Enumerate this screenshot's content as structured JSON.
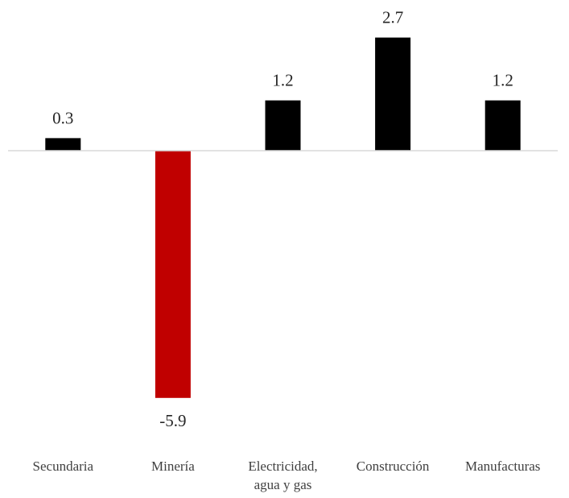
{
  "chart_data": {
    "type": "bar",
    "title": "",
    "xlabel": "",
    "ylabel": "",
    "categories": [
      [
        "Secundaria"
      ],
      [
        "Minería"
      ],
      [
        "Electricidad,",
        "agua y gas"
      ],
      [
        "Construcción"
      ],
      [
        "Manufacturas"
      ]
    ],
    "values": [
      0.3,
      -5.9,
      1.2,
      2.7,
      1.2
    ],
    "data_labels": [
      "0.3",
      "-5.9",
      "1.2",
      "2.7",
      "1.2"
    ],
    "ylim": [
      -6.3,
      3.0
    ],
    "grid": false,
    "legend": "none",
    "colors": {
      "positive": "#000000",
      "negative": "#c00000",
      "axis": "#d9d9d9",
      "label": "#262626",
      "category": "#404040"
    }
  }
}
